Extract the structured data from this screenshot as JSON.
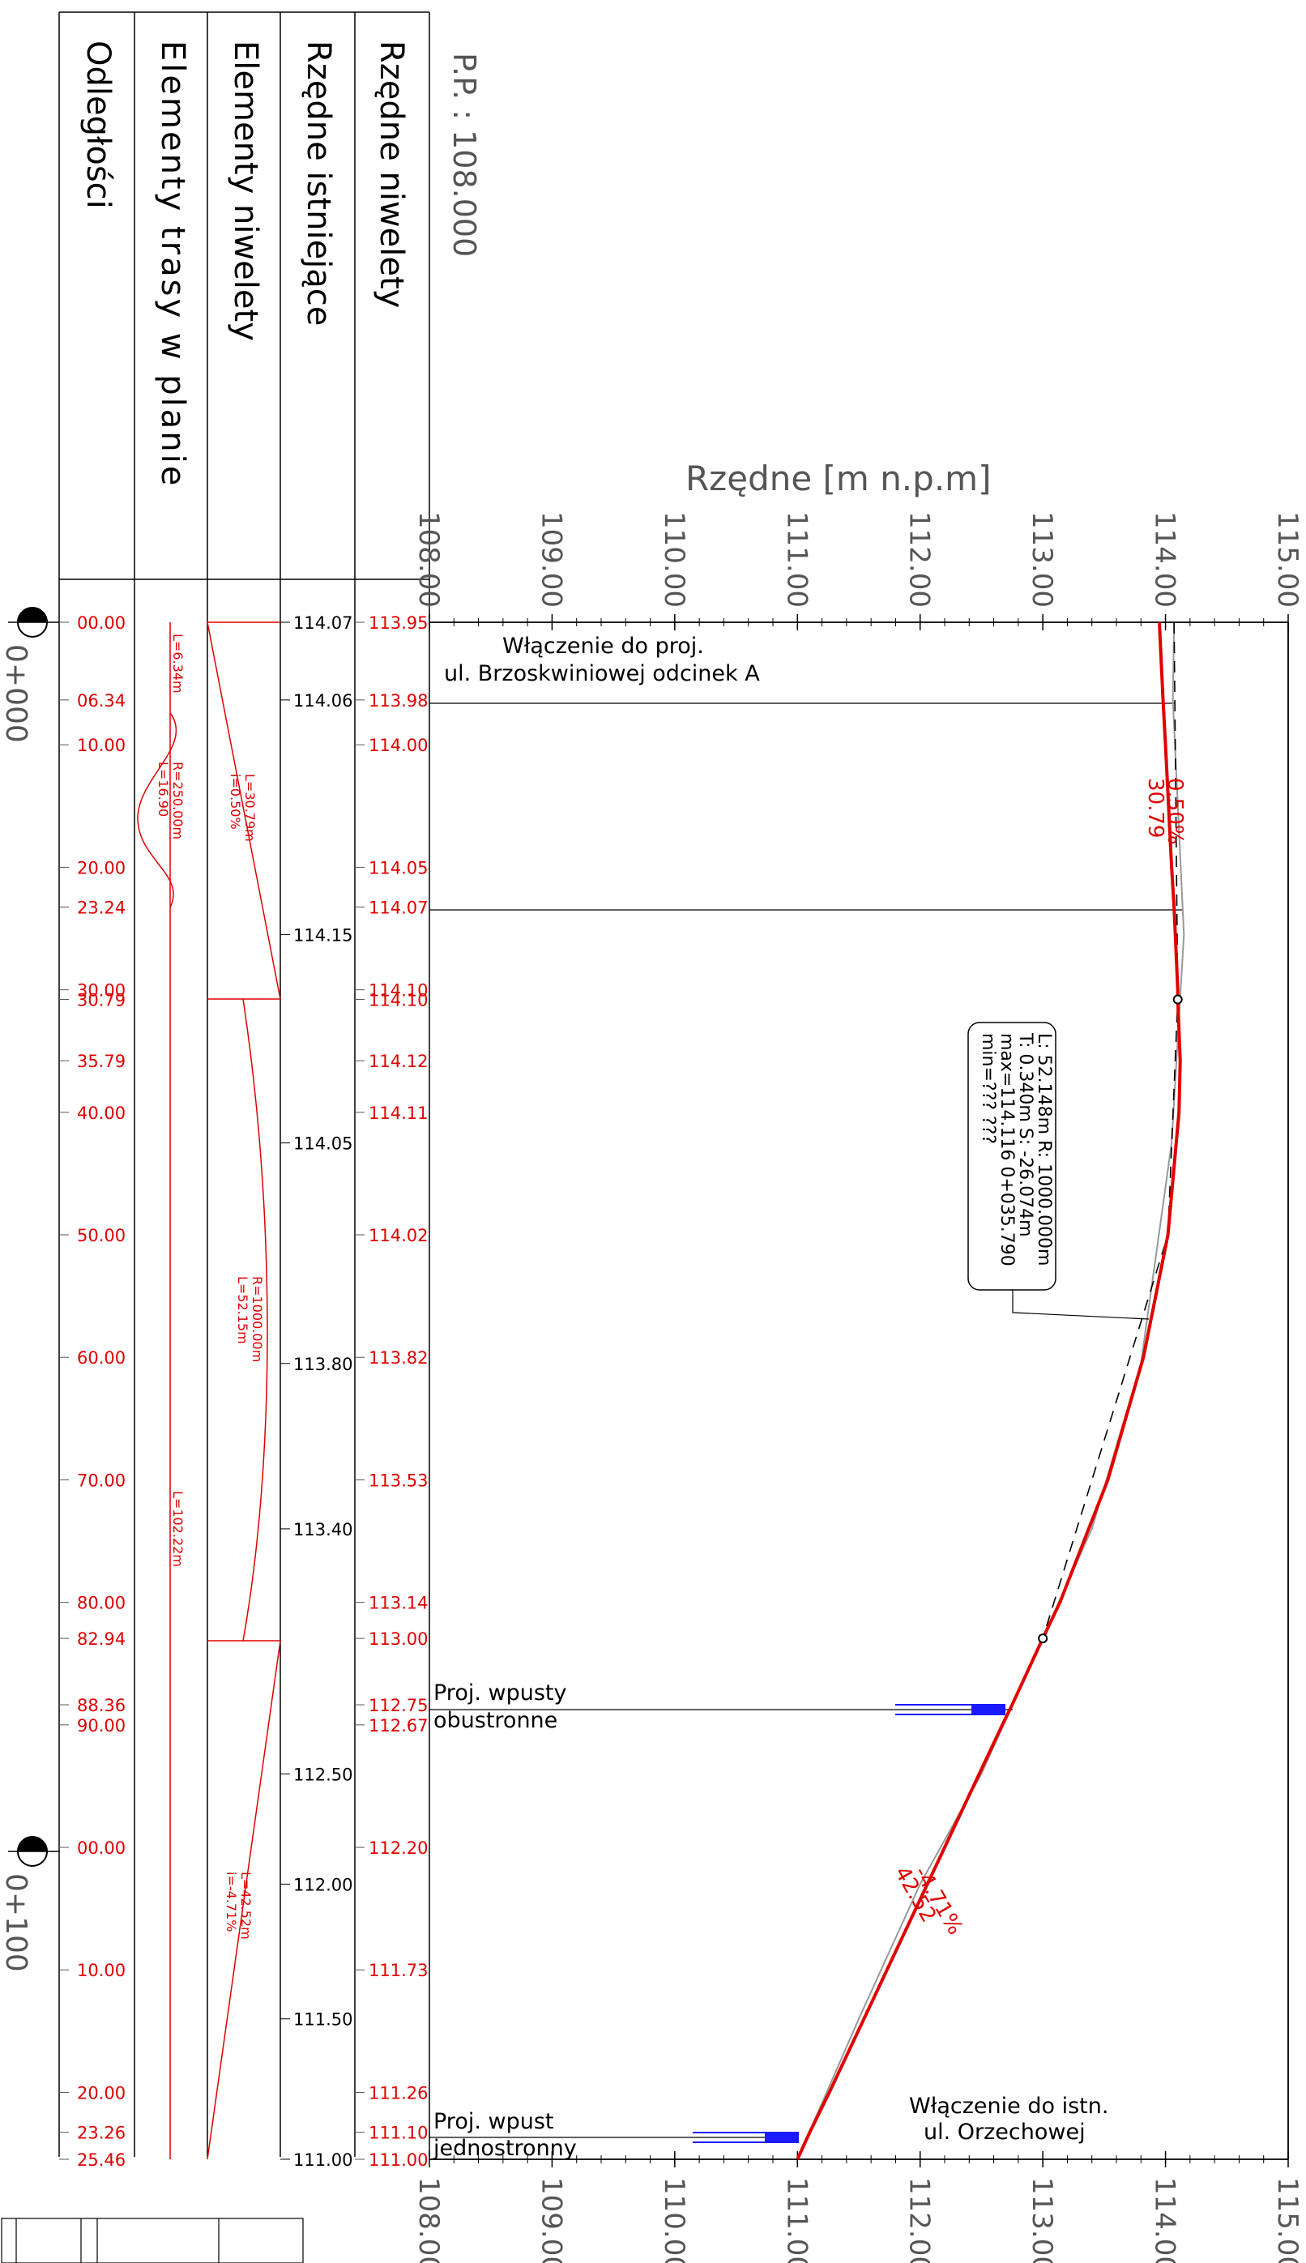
{
  "scale_label": "P.P. : 108.000",
  "axis_title": "Rzędne [m n.p.m]",
  "y_ticks": [
    "108.00",
    "109.00",
    "110.00",
    "111.00",
    "112.00",
    "113.00",
    "114.00",
    "115.00"
  ],
  "row_headers": {
    "distances": "Odległości",
    "route_elements": "Elementy trasy w planie",
    "grade_elements": "Elementy niwelety",
    "existing": "Rzędne istniejące",
    "design": "Rzędne niwelety"
  },
  "stations": [
    "0+000",
    "0+100"
  ],
  "distances": [
    "00.00",
    "06.34",
    "10.00",
    "20.00",
    "23.24",
    "30.00",
    "30.79",
    "35.79",
    "40.00",
    "50.00",
    "60.00",
    "70.00",
    "80.00",
    "82.94",
    "88.36",
    "90.00",
    "00.00",
    "10.00",
    "20.00",
    "23.26",
    "25.46"
  ],
  "design_elevations": [
    "113.95",
    "113.98",
    "114.00",
    "114.05",
    "114.07",
    "114.10",
    "114.10",
    "114.12",
    "114.11",
    "114.02",
    "113.82",
    "113.53",
    "113.14",
    "113.00",
    "112.75",
    "112.67",
    "112.20",
    "111.73",
    "111.26",
    "111.10",
    "111.00"
  ],
  "existing_elevations": [
    "114.07",
    "114.06",
    "114.15",
    "114.05",
    "113.80",
    "113.40",
    "112.50",
    "112.00",
    "111.50",
    "111.00"
  ],
  "plan_elements": [
    "L=6.34m",
    "R=250.00m",
    "L=16.90",
    "L=102.22m"
  ],
  "grade_elements": [
    "L=30.79m",
    "i=0.50%",
    "R=1000.00m",
    "L=52.15m",
    "L=42.52m",
    "i=-4.71%"
  ],
  "callout_lines": [
    "L: 52.148m R: 1000.000m",
    "T: 0.340m S: -26.074m",
    "max=114.116 0+035.790",
    "min=??? ???"
  ],
  "grade_label_1": "0.50%",
  "length_label_1": "30.79",
  "grade_label_2": "-4.71%",
  "length_label_2": "42.52",
  "annotations": {
    "start_1": "Włączenie do proj.",
    "start_2": "ul. Brzoskwiniowej odcinek A",
    "inlet2_1": "Proj. wpusty",
    "inlet2_2": "obustronne",
    "inlet1_1": "Proj. wpust",
    "inlet1_2": "jednostronny",
    "end_1": "Włączenie do istn.",
    "end_2": "ul. Orzechowej"
  },
  "colors": {
    "design": "#e00000",
    "inlet": "#1a1aff",
    "existing": "#888888"
  },
  "chart_data": {
    "type": "line",
    "ylabel": "Rzędne [m n.p.m]",
    "ylim": [
      108,
      115
    ],
    "xlim": [
      0,
      125.46
    ],
    "series": [
      {
        "values": [
          [
            0,
            113.95
          ],
          [
            6.34,
            113.98
          ],
          [
            10,
            114.0
          ],
          [
            20,
            114.05
          ],
          [
            23.24,
            114.07
          ],
          [
            30,
            114.1
          ],
          [
            30.79,
            114.1
          ],
          [
            35.79,
            114.12
          ],
          [
            40,
            114.11
          ],
          [
            50,
            114.02
          ],
          [
            60,
            113.82
          ],
          [
            70,
            113.53
          ],
          [
            80,
            113.14
          ],
          [
            82.94,
            113.0
          ],
          [
            88.36,
            112.75
          ],
          [
            90,
            112.67
          ],
          [
            100,
            112.2
          ],
          [
            110,
            111.73
          ],
          [
            120,
            111.26
          ],
          [
            123.26,
            111.1
          ],
          [
            125.46,
            111.0
          ]
        ]
      },
      {
        "values": [
          [
            0,
            114.07
          ],
          [
            6.34,
            114.06
          ],
          [
            25.5,
            114.15
          ],
          [
            42.5,
            114.05
          ],
          [
            60.5,
            113.8
          ],
          [
            74,
            113.4
          ],
          [
            94,
            112.5
          ],
          [
            103,
            112.0
          ],
          [
            114,
            111.5
          ],
          [
            125.46,
            111.0
          ]
        ]
      }
    ]
  }
}
